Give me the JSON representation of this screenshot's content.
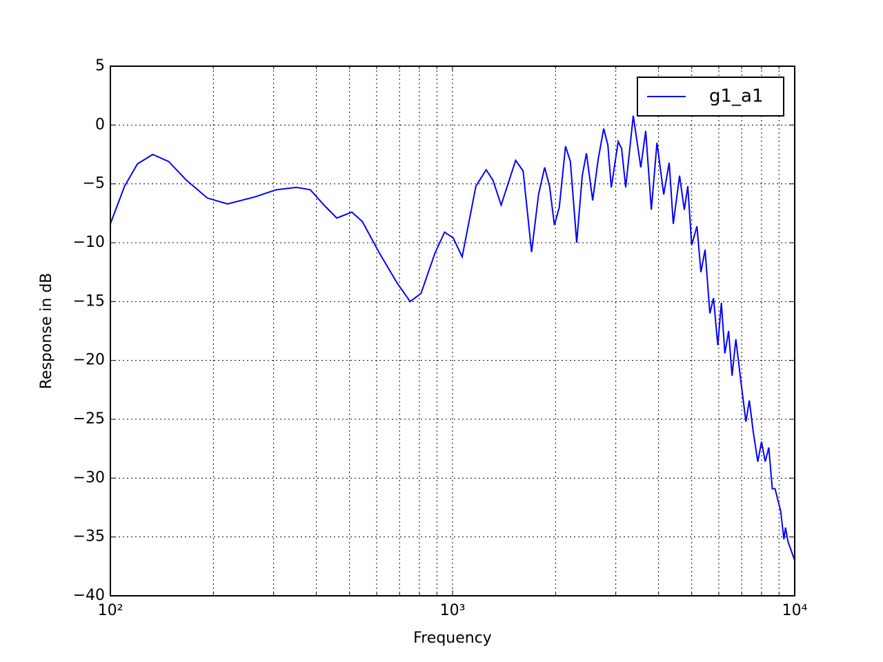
{
  "chart_data": {
    "type": "line",
    "xlabel": "Frequency",
    "ylabel": "Response in dB",
    "xscale": "log",
    "grid": true,
    "legend_loc": "upper right",
    "xlim": [
      100,
      10000
    ],
    "ylim": [
      -40,
      5
    ],
    "xticks": [
      {
        "value": 100,
        "label": "10²"
      },
      {
        "value": 1000,
        "label": "10³"
      },
      {
        "value": 10000,
        "label": "10⁴"
      }
    ],
    "xminorticks": [
      200,
      300,
      400,
      500,
      600,
      700,
      800,
      900,
      2000,
      3000,
      4000,
      5000,
      6000,
      7000,
      8000,
      9000
    ],
    "yticks": [
      {
        "value": 5,
        "label": "5"
      },
      {
        "value": 0,
        "label": "0"
      },
      {
        "value": -5,
        "label": "−5"
      },
      {
        "value": -10,
        "label": "−10"
      },
      {
        "value": -15,
        "label": "−15"
      },
      {
        "value": -20,
        "label": "−20"
      },
      {
        "value": -25,
        "label": "−25"
      },
      {
        "value": -30,
        "label": "−30"
      },
      {
        "value": -35,
        "label": "−35"
      },
      {
        "value": -40,
        "label": "−40"
      }
    ],
    "x": [
      100,
      110,
      120,
      133,
      148,
      167,
      192,
      220,
      265,
      305,
      350,
      384,
      421,
      459,
      508,
      545,
      612,
      688,
      752,
      809,
      888,
      948,
      1005,
      1067,
      1170,
      1254,
      1313,
      1387,
      1529,
      1608,
      1702,
      1784,
      1859,
      1921,
      1985,
      2051,
      2139,
      2210,
      2306,
      2394,
      2462,
      2568,
      2665,
      2766,
      2844,
      2911,
      3049,
      3120,
      3207,
      3374,
      3549,
      3669,
      3811,
      3958,
      4142,
      4297,
      4417,
      4608,
      4758,
      4870,
      5000,
      5180,
      5320,
      5470,
      5650,
      5790,
      5960,
      6105,
      6250,
      6410,
      6560,
      6730,
      6950,
      7200,
      7370,
      7560,
      7800,
      8000,
      8200,
      8400,
      8600,
      8760,
      9100,
      9300,
      9400,
      9560,
      10000
    ],
    "series": [
      {
        "name": "g1_a1",
        "color": "#0000ff",
        "values": [
          -8.4,
          -5.2,
          -3.3,
          -2.5,
          -3.1,
          -4.7,
          -6.2,
          -6.7,
          -6.1,
          -5.5,
          -5.3,
          -5.5,
          -6.8,
          -7.9,
          -7.4,
          -8.2,
          -10.9,
          -13.4,
          -15.0,
          -14.3,
          -10.9,
          -9.1,
          -9.6,
          -11.2,
          -5.2,
          -3.8,
          -4.7,
          -6.8,
          -3.0,
          -3.9,
          -10.8,
          -5.9,
          -3.6,
          -5.2,
          -8.5,
          -7.0,
          -1.8,
          -3.1,
          -10.0,
          -4.3,
          -2.4,
          -6.4,
          -2.9,
          -0.3,
          -1.7,
          -5.3,
          -1.4,
          -2.0,
          -5.3,
          0.8,
          -3.6,
          -0.5,
          -7.2,
          -1.5,
          -5.9,
          -3.2,
          -8.4,
          -4.3,
          -7.2,
          -5.2,
          -10.2,
          -8.6,
          -12.5,
          -10.6,
          -16.0,
          -14.7,
          -18.7,
          -15.1,
          -19.4,
          -17.5,
          -21.3,
          -18.2,
          -21.6,
          -25.2,
          -23.4,
          -26.0,
          -28.6,
          -26.9,
          -28.6,
          -27.4,
          -30.9,
          -30.9,
          -32.8,
          -35.2,
          -34.2,
          -35.4,
          -37.0
        ]
      }
    ]
  }
}
